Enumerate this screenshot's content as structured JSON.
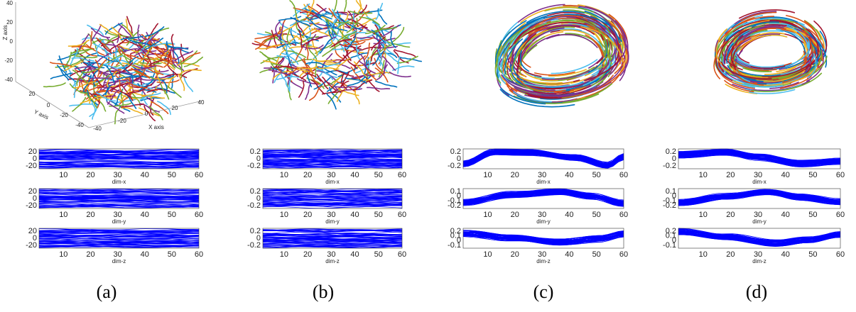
{
  "panels": [
    {
      "label": "(a)",
      "axes3d": {
        "z_axis_label": "Z axis",
        "y_axis_label": "Y axis",
        "x_axis_label": "X axis",
        "z_ticks": [
          "40",
          "20",
          "0",
          "-20",
          "-40"
        ],
        "y_ticks": [
          "20",
          "0",
          "-20",
          "-40"
        ],
        "x_ticks": [
          "-40",
          "-20",
          "0",
          "20",
          "40"
        ]
      },
      "plots": [
        {
          "xlabel": "dim-x",
          "yticks": [
            "20",
            "0",
            "-20"
          ],
          "xticks": [
            "10",
            "20",
            "30",
            "40",
            "50",
            "60"
          ]
        },
        {
          "xlabel": "dim-y",
          "yticks": [
            "20",
            "0",
            "-20"
          ],
          "xticks": [
            "10",
            "20",
            "30",
            "40",
            "50",
            "60"
          ]
        },
        {
          "xlabel": "dim-z",
          "yticks": [
            "20",
            "0",
            "-20"
          ],
          "xticks": [
            "10",
            "20",
            "30",
            "40",
            "50",
            "60"
          ]
        }
      ]
    },
    {
      "label": "(b)",
      "plots": [
        {
          "xlabel": "dim-x",
          "yticks": [
            "0.2",
            "0",
            "-0.2"
          ],
          "xticks": [
            "10",
            "20",
            "30",
            "40",
            "50",
            "60"
          ]
        },
        {
          "xlabel": "dim-y",
          "yticks": [
            "0.2",
            "0",
            "-0.2"
          ],
          "xticks": [
            "10",
            "20",
            "30",
            "40",
            "50",
            "60"
          ]
        },
        {
          "xlabel": "dim-z",
          "yticks": [
            "0.2",
            "0",
            "-0.2"
          ],
          "xticks": [
            "10",
            "20",
            "30",
            "40",
            "50",
            "60"
          ]
        }
      ]
    },
    {
      "label": "(c)",
      "plots": [
        {
          "xlabel": "dim-x",
          "yticks": [
            "0.2",
            "0",
            "-0.2"
          ],
          "xticks": [
            "10",
            "20",
            "30",
            "40",
            "50",
            "60"
          ]
        },
        {
          "xlabel": "dim-y",
          "yticks": [
            "0.1",
            "0",
            "-0.1",
            "-0.2"
          ],
          "xticks": [
            "10",
            "20",
            "30",
            "40",
            "50",
            "60"
          ]
        },
        {
          "xlabel": "dim-z",
          "yticks": [
            "0.2",
            "0.1",
            "0",
            "-0.1"
          ],
          "xticks": [
            "10",
            "20",
            "30",
            "40",
            "50",
            "60"
          ]
        }
      ]
    },
    {
      "label": "(d)",
      "plots": [
        {
          "xlabel": "dim-x",
          "yticks": [
            "0.2",
            "0",
            "-0.2"
          ],
          "xticks": [
            "10",
            "20",
            "30",
            "40",
            "50",
            "60"
          ]
        },
        {
          "xlabel": "dim-y",
          "yticks": [
            "0.1",
            "0",
            "-0.1",
            "-0.2"
          ],
          "xticks": [
            "10",
            "20",
            "30",
            "40",
            "50",
            "60"
          ]
        },
        {
          "xlabel": "dim-z",
          "yticks": [
            "0.2",
            "0.1",
            "0",
            "-0.1"
          ],
          "xticks": [
            "10",
            "20",
            "30",
            "40",
            "50",
            "60"
          ]
        }
      ]
    }
  ]
}
